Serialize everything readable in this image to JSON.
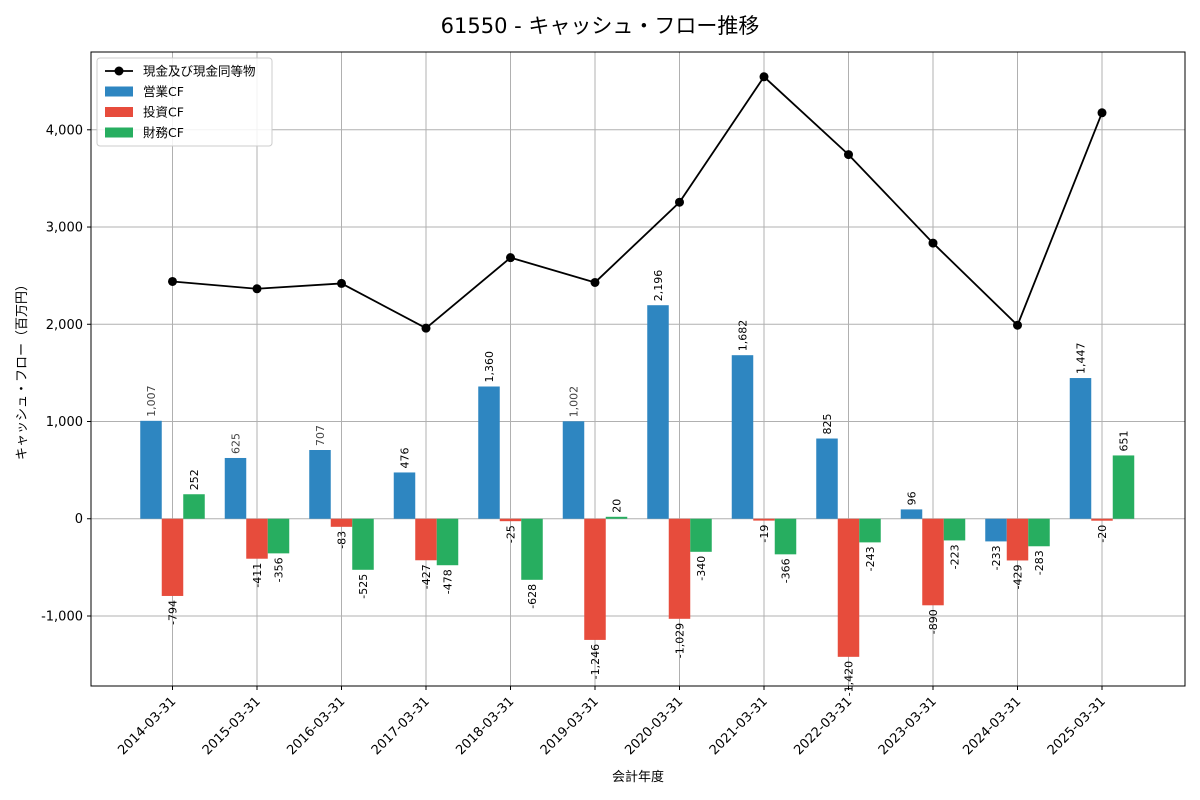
{
  "chart_data": {
    "type": "bar",
    "title": "61550 - キャッシュ・フロー推移",
    "xlabel": "会計年度",
    "ylabel": "キャッシュ・フロー（百万円）",
    "ylim": [
      -1720,
      4800
    ],
    "yticks": [
      -1000,
      0,
      1000,
      2000,
      3000,
      4000
    ],
    "ytick_labels": [
      "-1,000",
      "0",
      "1,000",
      "2,000",
      "3,000",
      "4,000"
    ],
    "grid": true,
    "legend_position": "top-left",
    "categories": [
      "2014-03-31",
      "2015-03-31",
      "2016-03-31",
      "2017-03-31",
      "2018-03-31",
      "2019-03-31",
      "2020-03-31",
      "2021-03-31",
      "2022-03-31",
      "2023-03-31",
      "2024-03-31",
      "2025-03-31"
    ],
    "series": [
      {
        "name": "営業CF",
        "kind": "bar",
        "color": "#2e86c1",
        "values": [
          1007,
          625,
          707,
          476,
          1360,
          1002,
          2196,
          1682,
          825,
          96,
          -233,
          1447
        ],
        "labels": [
          "1,007",
          "625",
          "707",
          "476",
          "1,360",
          "1,002",
          "2,196",
          "1,682",
          "825",
          "96",
          "-233",
          "1,447"
        ]
      },
      {
        "name": "投資CF",
        "kind": "bar",
        "color": "#e74c3c",
        "values": [
          -794,
          -411,
          -83,
          -427,
          -25,
          -1246,
          -1029,
          -19,
          -1420,
          -890,
          -429,
          -20
        ],
        "labels": [
          "-794",
          "-411",
          "-83",
          "-427",
          "-25",
          "-1,246",
          "-1,029",
          "-19",
          "-1,420",
          "-890",
          "-429",
          "-20"
        ]
      },
      {
        "name": "財務CF",
        "kind": "bar",
        "color": "#27ae60",
        "values": [
          252,
          -356,
          -525,
          -478,
          -628,
          20,
          -340,
          -366,
          -243,
          -223,
          -283,
          651
        ],
        "labels": [
          "252",
          "-356",
          "-525",
          "-478",
          "-628",
          "20",
          "-340",
          "-366",
          "-243",
          "-223",
          "-283",
          "651"
        ]
      },
      {
        "name": "現金及び現金同等物",
        "kind": "line",
        "color": "#000000",
        "values": [
          2440,
          2365,
          2420,
          1960,
          2685,
          2430,
          3255,
          4545,
          3745,
          2835,
          1990,
          4175
        ]
      }
    ]
  }
}
